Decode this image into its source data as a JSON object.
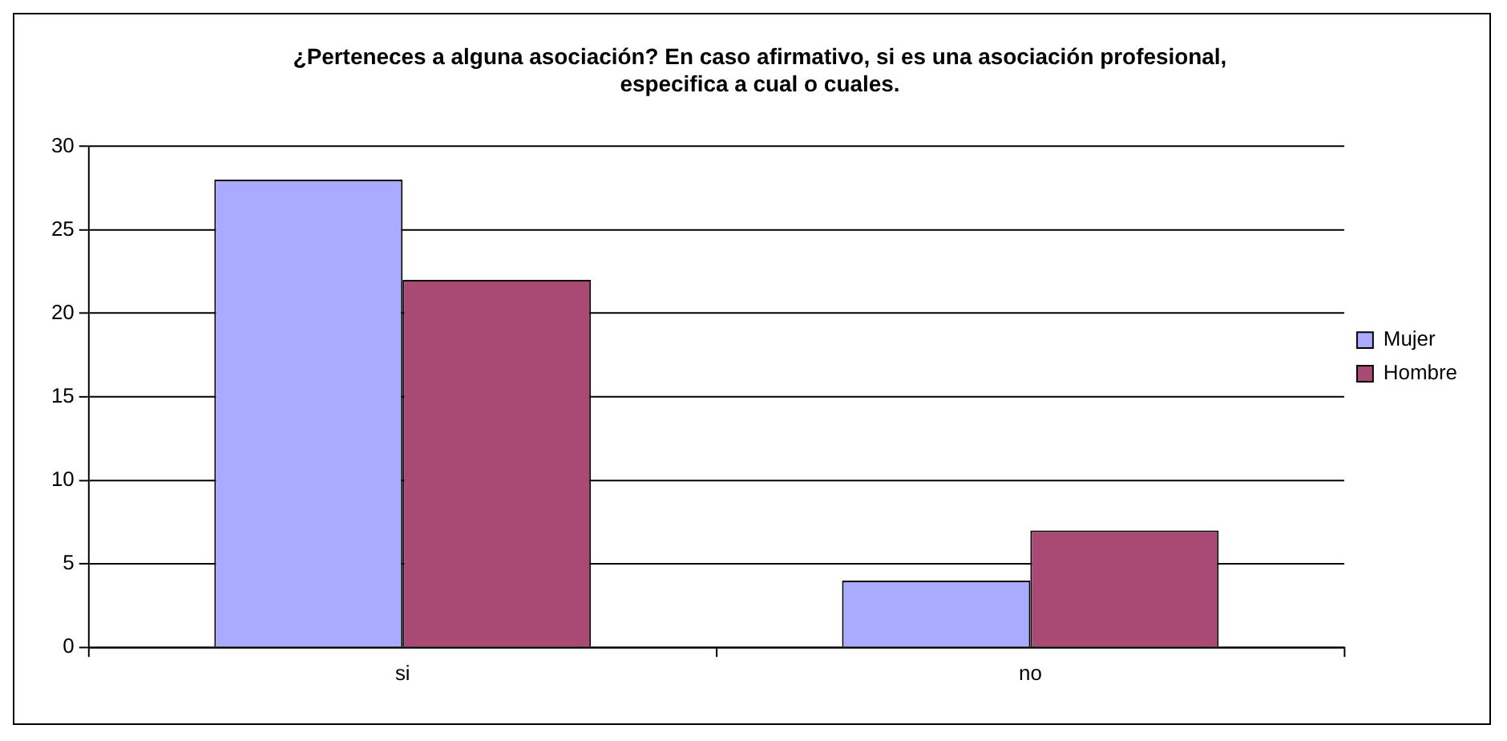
{
  "chart_data": {
    "type": "bar",
    "title": "¿Perteneces a alguna asociación? En caso afirmativo, si es una asociación profesional,\nespecifica a cual o cuales.",
    "categories": [
      "si",
      "no"
    ],
    "series": [
      {
        "name": "Mujer",
        "color": "#aaaaff",
        "values": [
          28,
          4
        ]
      },
      {
        "name": "Hombre",
        "color": "#a94a75",
        "values": [
          22,
          7
        ]
      }
    ],
    "ylim": [
      0,
      30
    ],
    "yticks": [
      0,
      5,
      10,
      15,
      20,
      25,
      30
    ],
    "grid": "y",
    "legend": "right"
  }
}
